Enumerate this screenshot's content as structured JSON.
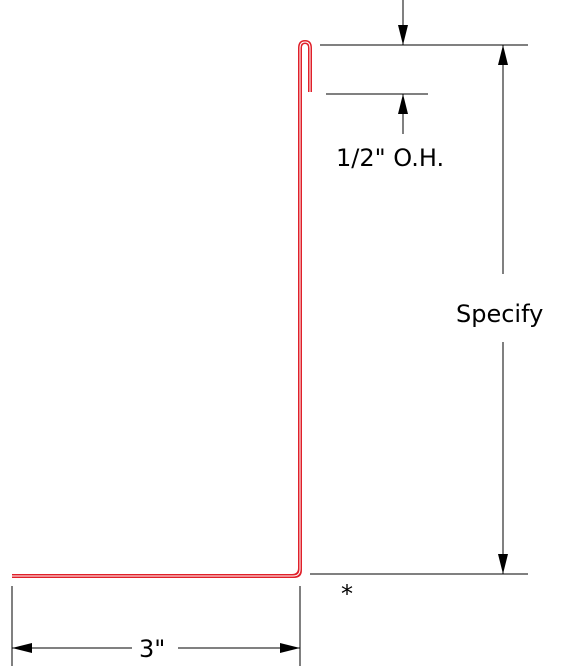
{
  "drawing": {
    "hem_label": "1/2\" O.H.",
    "height_label": "Specify",
    "base_label": "3\"",
    "note_marker": "*"
  },
  "colors": {
    "profile": "#e0202a",
    "dimension": "#000000",
    "background": "#ffffff"
  }
}
